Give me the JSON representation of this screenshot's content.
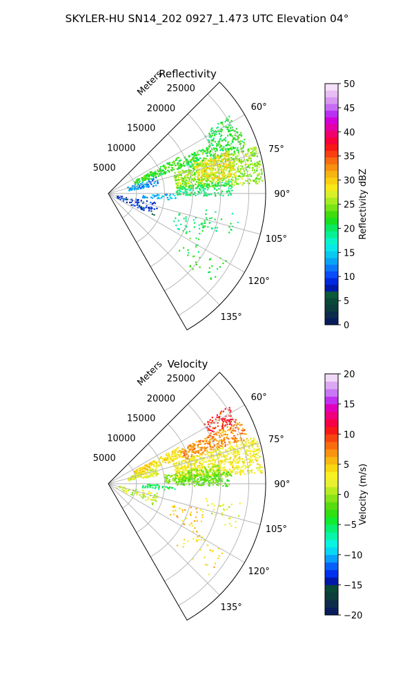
{
  "figure": {
    "title": "SKYLER-HU  SN14_202  0927_1.473 UTC Elevation 04°"
  },
  "chart_data": [
    {
      "type": "heatmap",
      "subtype": "polar-sector-radar-ppi",
      "title": "Reflectivity",
      "radial_axis_label": "Meters",
      "radial_ticks": [
        5000,
        10000,
        15000,
        20000,
        25000
      ],
      "radial_tick_labels": [
        "5000",
        "10000",
        "15000",
        "20000",
        "25000"
      ],
      "rmax": 28000,
      "theta_range_deg": [
        45,
        150
      ],
      "theta_ticks": [
        60,
        75,
        90,
        105,
        120,
        135
      ],
      "theta_tick_labels": [
        "60°",
        "75°",
        "90°",
        "105°",
        "120°",
        "135°"
      ],
      "grid": true,
      "colorbar": {
        "label": "Reflectivity dBZ",
        "min": 0,
        "max": 50,
        "ticks": [
          0,
          5,
          10,
          15,
          20,
          25,
          30,
          35,
          40,
          45,
          50
        ],
        "tick_labels": [
          "0",
          "5",
          "10",
          "15",
          "20",
          "25",
          "30",
          "35",
          "40",
          "45",
          "50"
        ],
        "colors": [
          "#081c5c",
          "#0c2c4c",
          "#0c3c3c",
          "#0a4838",
          "#0c5a3a",
          "#0018a8",
          "#0028e0",
          "#0a4cf8",
          "#0a78f8",
          "#08a4f4",
          "#08c8f0",
          "#08e8e8",
          "#08f4c8",
          "#08f094",
          "#0ae860",
          "#18e020",
          "#40dc10",
          "#78e418",
          "#a8ec20",
          "#d8f028",
          "#f8e818",
          "#f8d010",
          "#f8b410",
          "#f89010",
          "#f86c10",
          "#f84010",
          "#f81818",
          "#f80038",
          "#f0006c",
          "#e400a4",
          "#d400d8",
          "#b830f4",
          "#c86cf4",
          "#d898f0",
          "#e8bcf4",
          "#f4e0f8"
        ]
      },
      "echo_regions": [
        {
          "theta": [
            57,
            64
          ],
          "r": [
            20000,
            25500
          ],
          "value": 21,
          "density": 0.55
        },
        {
          "theta": [
            64,
            72
          ],
          "r": [
            14000,
            26000
          ],
          "value": 22,
          "density": 0.75
        },
        {
          "theta": [
            72,
            86
          ],
          "r": [
            12000,
            27500
          ],
          "value": 25,
          "density": 0.85
        },
        {
          "theta": [
            70,
            82
          ],
          "r": [
            16000,
            23000
          ],
          "value": 29,
          "density": 0.8
        },
        {
          "theta": [
            62,
            70
          ],
          "r": [
            5000,
            14000
          ],
          "value": 22,
          "density": 0.7
        },
        {
          "theta": [
            70,
            80
          ],
          "r": [
            3500,
            9000
          ],
          "value": 13,
          "density": 0.45
        },
        {
          "theta": [
            84,
            91
          ],
          "r": [
            12000,
            22000
          ],
          "value": 20,
          "density": 0.6
        },
        {
          "theta": [
            90,
            96
          ],
          "r": [
            6000,
            12000
          ],
          "value": 14,
          "density": 0.3
        },
        {
          "theta": [
            100,
            116
          ],
          "r": [
            1500,
            9000
          ],
          "value": 9,
          "density": 0.18
        },
        {
          "theta": [
            105,
            118
          ],
          "r": [
            12000,
            18000
          ],
          "value": 20,
          "density": 0.12
        },
        {
          "theta": [
            98,
            110
          ],
          "r": [
            17000,
            24000
          ],
          "value": 20,
          "density": 0.1
        },
        {
          "theta": [
            118,
            132
          ],
          "r": [
            16000,
            24000
          ],
          "value": 22,
          "density": 0.08
        }
      ]
    },
    {
      "type": "heatmap",
      "subtype": "polar-sector-radar-ppi",
      "title": "Velocity",
      "radial_axis_label": "Meters",
      "radial_ticks": [
        5000,
        10000,
        15000,
        20000,
        25000
      ],
      "radial_tick_labels": [
        "5000",
        "10000",
        "15000",
        "20000",
        "25000"
      ],
      "rmax": 28000,
      "theta_range_deg": [
        45,
        150
      ],
      "theta_ticks": [
        60,
        75,
        90,
        105,
        120,
        135
      ],
      "theta_tick_labels": [
        "60°",
        "75°",
        "90°",
        "105°",
        "120°",
        "135°"
      ],
      "grid": true,
      "colorbar": {
        "label": "Velocity (m/s)",
        "min": -20,
        "max": 20,
        "ticks": [
          -20,
          -15,
          -10,
          -5,
          0,
          5,
          10,
          15,
          20
        ],
        "tick_labels": [
          "−20",
          "−15",
          "−10",
          "−5",
          "0",
          "5",
          "10",
          "15",
          "20"
        ],
        "colors": [
          "#081c5c",
          "#0c2c4c",
          "#0c3c3c",
          "#0a4838",
          "#0018a8",
          "#0030f0",
          "#0860f8",
          "#08a0f8",
          "#08d8f4",
          "#08f4e0",
          "#08f4a8",
          "#08f070",
          "#10ec30",
          "#30e010",
          "#58dc10",
          "#88e418",
          "#b8ec20",
          "#e8f030",
          "#f8f020",
          "#f8d810",
          "#f8b810",
          "#f89410",
          "#f86c10",
          "#f84410",
          "#f81818",
          "#f80044",
          "#f0007c",
          "#e000bc",
          "#c030f0",
          "#c878f4",
          "#dca8f4",
          "#f0d8f8"
        ]
      },
      "echo_regions": [
        {
          "theta": [
            57,
            64
          ],
          "r": [
            20000,
            25500
          ],
          "value": 10,
          "density": 0.6
        },
        {
          "theta": [
            64,
            72
          ],
          "r": [
            14000,
            26000
          ],
          "value": 7,
          "density": 0.8
        },
        {
          "theta": [
            72,
            86
          ],
          "r": [
            12000,
            27500
          ],
          "value": 3,
          "density": 0.85
        },
        {
          "theta": [
            80,
            90
          ],
          "r": [
            10000,
            20000
          ],
          "value": -1,
          "density": 0.6
        },
        {
          "theta": [
            62,
            70
          ],
          "r": [
            5000,
            14000
          ],
          "value": 4,
          "density": 0.75
        },
        {
          "theta": [
            70,
            80
          ],
          "r": [
            3500,
            9000
          ],
          "value": 2,
          "density": 0.5
        },
        {
          "theta": [
            84,
            91
          ],
          "r": [
            12000,
            22000
          ],
          "value": -2,
          "density": 0.55
        },
        {
          "theta": [
            90,
            96
          ],
          "r": [
            6000,
            12000
          ],
          "value": -5,
          "density": 0.3
        },
        {
          "theta": [
            100,
            116
          ],
          "r": [
            1500,
            9000
          ],
          "value": 1,
          "density": 0.15
        },
        {
          "theta": [
            105,
            118
          ],
          "r": [
            12000,
            18000
          ],
          "value": 5,
          "density": 0.12
        },
        {
          "theta": [
            98,
            110
          ],
          "r": [
            17000,
            24000
          ],
          "value": 2,
          "density": 0.1
        },
        {
          "theta": [
            118,
            132
          ],
          "r": [
            16000,
            24000
          ],
          "value": 4,
          "density": 0.08
        }
      ]
    }
  ]
}
